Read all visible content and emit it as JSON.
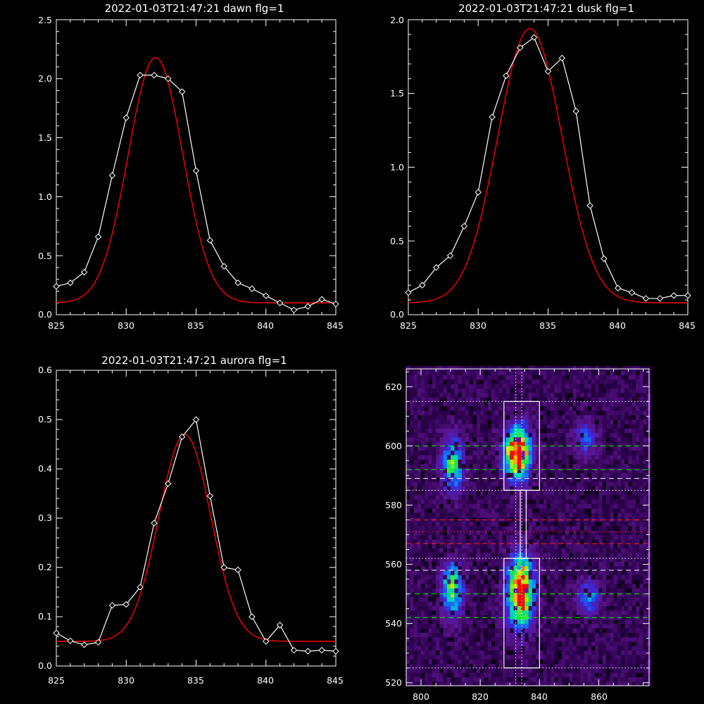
{
  "chart_data": [
    {
      "type": "line",
      "title": "2022-01-03T21:47:21 dawn flg=1",
      "xlim": [
        825,
        845
      ],
      "ylim": [
        0,
        2.5
      ],
      "xticks": [
        "825",
        "830",
        "835",
        "840",
        "845"
      ],
      "yticks": [
        "0.0",
        "0.5",
        "1.0",
        "1.5",
        "2.0",
        "2.5"
      ],
      "series": [
        {
          "color": "#ffffff",
          "marker": "diamond",
          "x": [
            825,
            826,
            827,
            828,
            829,
            830,
            831,
            832,
            833,
            834,
            835,
            836,
            837,
            838,
            839,
            840,
            841,
            842,
            843,
            844,
            845
          ],
          "y": [
            0.24,
            0.27,
            0.36,
            0.66,
            1.18,
            1.67,
            2.03,
            2.03,
            2.0,
            1.89,
            1.22,
            0.63,
            0.41,
            0.27,
            0.22,
            0.16,
            0.1,
            0.04,
            0.07,
            0.13,
            0.09
          ]
        },
        {
          "color": "#ff0000",
          "fit": "gaussian",
          "center": 832.1,
          "sigma": 1.95,
          "amplitude": 2.08,
          "base": 0.1
        }
      ]
    },
    {
      "type": "line",
      "title": "2022-01-03T21:47:21 dusk flg=1",
      "xlim": [
        825,
        845
      ],
      "ylim": [
        0,
        2.0
      ],
      "xticks": [
        "825",
        "830",
        "835",
        "840",
        "845"
      ],
      "yticks": [
        "0.0",
        "0.5",
        "1.0",
        "1.5",
        "2.0"
      ],
      "series": [
        {
          "color": "#ffffff",
          "marker": "diamond",
          "x": [
            825,
            826,
            827,
            828,
            829,
            830,
            831,
            832,
            833,
            834,
            835,
            836,
            837,
            838,
            839,
            840,
            841,
            842,
            843,
            844,
            845
          ],
          "y": [
            0.15,
            0.2,
            0.32,
            0.4,
            0.6,
            0.83,
            1.34,
            1.62,
            1.81,
            1.88,
            1.65,
            1.74,
            1.38,
            0.74,
            0.38,
            0.18,
            0.15,
            0.11,
            0.11,
            0.13,
            0.13
          ]
        },
        {
          "color": "#ff0000",
          "fit": "gaussian",
          "center": 833.7,
          "sigma": 2.3,
          "amplitude": 1.86,
          "base": 0.08
        }
      ]
    },
    {
      "type": "line",
      "title": "2022-01-03T21:47:21 aurora flg=1",
      "xlim": [
        825,
        845
      ],
      "ylim": [
        0,
        0.6
      ],
      "xticks": [
        "825",
        "830",
        "835",
        "840",
        "845"
      ],
      "yticks": [
        "0.0",
        "0.1",
        "0.2",
        "0.3",
        "0.4",
        "0.5",
        "0.6"
      ],
      "series": [
        {
          "color": "#ffffff",
          "marker": "diamond",
          "x": [
            825,
            826,
            827,
            828,
            829,
            830,
            831,
            832,
            833,
            834,
            835,
            836,
            837,
            838,
            839,
            840,
            841,
            842,
            843,
            844,
            845
          ],
          "y": [
            0.067,
            0.051,
            0.043,
            0.048,
            0.123,
            0.125,
            0.16,
            0.29,
            0.37,
            0.465,
            0.5,
            0.345,
            0.2,
            0.195,
            0.1,
            0.05,
            0.083,
            0.032,
            0.03,
            0.032,
            0.03
          ]
        },
        {
          "color": "#ff0000",
          "fit": "gaussian",
          "center": 834.2,
          "sigma": 1.85,
          "amplitude": 0.42,
          "base": 0.05
        }
      ]
    },
    {
      "type": "heatmap",
      "title": "",
      "xlim": [
        795,
        877
      ],
      "ylim": [
        519,
        626
      ],
      "xticks": [
        "800",
        "820",
        "840",
        "860"
      ],
      "yticks": [
        "520",
        "540",
        "560",
        "580",
        "600",
        "620"
      ],
      "colormap": "rainbow",
      "blobs": [
        {
          "x": 810,
          "y": 593,
          "sx": 2.5,
          "sy": 6,
          "amp": 0.55
        },
        {
          "x": 832,
          "y": 597,
          "sx": 3,
          "sy": 6,
          "amp": 1.0
        },
        {
          "x": 855,
          "y": 602,
          "sx": 2.5,
          "sy": 4,
          "amp": 0.3
        },
        {
          "x": 810,
          "y": 551,
          "sx": 2.5,
          "sy": 6,
          "amp": 0.6
        },
        {
          "x": 833,
          "y": 550,
          "sx": 3,
          "sy": 8,
          "amp": 1.0
        },
        {
          "x": 856,
          "y": 548,
          "sx": 2.5,
          "sy": 4,
          "amp": 0.35
        }
      ],
      "boxes": [
        {
          "x": [
            828,
            840
          ],
          "y": [
            585,
            615
          ]
        },
        {
          "x": [
            828,
            840
          ],
          "y": [
            525,
            562
          ]
        },
        {
          "x": [
            833.5,
            835.5
          ],
          "y": [
            562,
            585
          ]
        }
      ],
      "vlines_dotted": [
        832,
        834
      ],
      "hlines": [
        {
          "y": 615,
          "color": "#ffffff",
          "style": "dotted"
        },
        {
          "y": 600,
          "color": "#00ff00",
          "style": "dashed"
        },
        {
          "y": 592,
          "color": "#00ff00",
          "style": "dashed"
        },
        {
          "y": 589,
          "color": "#ffffff",
          "style": "dashed"
        },
        {
          "y": 585,
          "color": "#ffffff",
          "style": "dotted"
        },
        {
          "y": 575,
          "color": "#ff2020",
          "style": "dashed"
        },
        {
          "y": 571,
          "color": "#ff2020",
          "style": "dotted"
        },
        {
          "y": 567,
          "color": "#ff2020",
          "style": "dashed"
        },
        {
          "y": 562,
          "color": "#ffffff",
          "style": "dotted"
        },
        {
          "y": 558,
          "color": "#ffffff",
          "style": "dashed"
        },
        {
          "y": 550,
          "color": "#00ff00",
          "style": "dashed"
        },
        {
          "y": 542,
          "color": "#00ff00",
          "style": "dashed"
        },
        {
          "y": 525,
          "color": "#ffffff",
          "style": "dotted"
        }
      ]
    }
  ]
}
